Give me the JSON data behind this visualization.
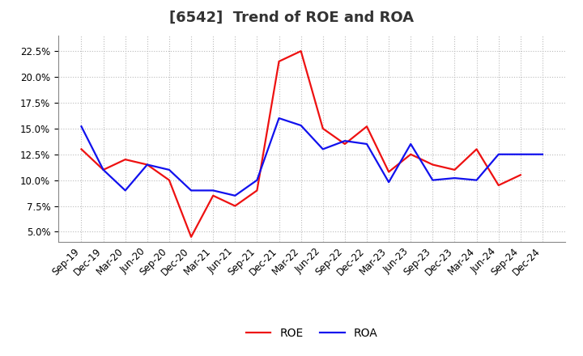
{
  "title": "[6542]  Trend of ROE and ROA",
  "labels": [
    "Sep-19",
    "Dec-19",
    "Mar-20",
    "Jun-20",
    "Sep-20",
    "Dec-20",
    "Mar-21",
    "Jun-21",
    "Sep-21",
    "Dec-21",
    "Mar-22",
    "Jun-22",
    "Sep-22",
    "Dec-22",
    "Mar-23",
    "Jun-23",
    "Sep-23",
    "Dec-23",
    "Mar-24",
    "Jun-24",
    "Sep-24",
    "Dec-24"
  ],
  "roe": [
    13.0,
    11.0,
    12.0,
    11.5,
    10.0,
    4.5,
    8.5,
    7.5,
    9.0,
    21.5,
    22.5,
    15.0,
    13.5,
    15.2,
    10.8,
    12.5,
    11.5,
    11.0,
    13.0,
    9.5,
    10.5,
    null
  ],
  "roa": [
    15.2,
    11.0,
    9.0,
    11.5,
    11.0,
    9.0,
    9.0,
    8.5,
    10.0,
    16.0,
    15.3,
    13.0,
    13.8,
    13.5,
    9.8,
    13.5,
    10.0,
    10.2,
    10.0,
    12.5,
    12.5,
    12.5
  ],
  "roe_color": "#EE1111",
  "roa_color": "#1111EE",
  "bg_color": "#FFFFFF",
  "plot_bg_color": "#FFFFFF",
  "grid_color": "#BBBBBB",
  "ylim": [
    4.0,
    24.0
  ],
  "yticks": [
    5.0,
    7.5,
    10.0,
    12.5,
    15.0,
    17.5,
    20.0,
    22.5
  ],
  "title_fontsize": 13,
  "legend_fontsize": 10,
  "tick_fontsize": 8.5,
  "linewidth": 1.6
}
